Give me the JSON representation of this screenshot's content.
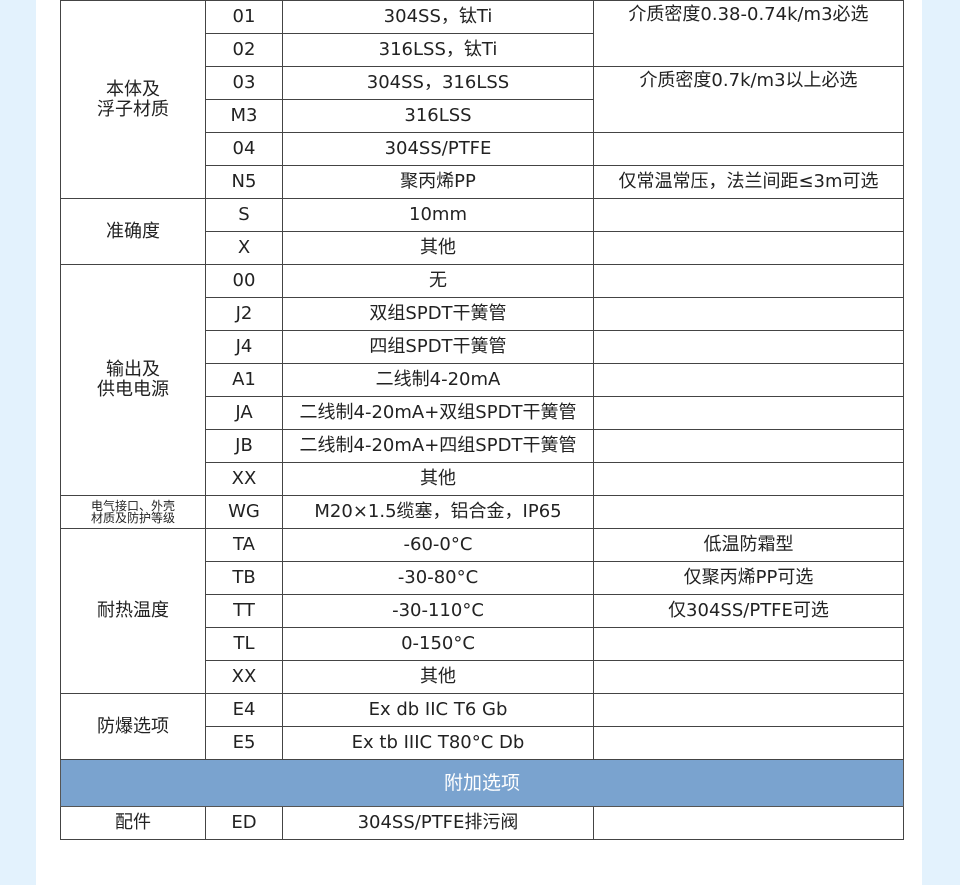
{
  "colors": {
    "band": "#7aa3cf",
    "border": "#444444",
    "background": "#e3f2fd"
  },
  "groups": [
    {
      "category": "本体及\n浮子材质",
      "rows": [
        {
          "code": "01",
          "desc": "304SS，钛Ti",
          "note": "介质密度0.38-0.74k/m3必选",
          "note_span": 2,
          "note_top": true
        },
        {
          "code": "02",
          "desc": "316LSS，钛Ti"
        },
        {
          "code": "03",
          "desc": "304SS，316LSS",
          "note": "介质密度0.7k/m3以上必选",
          "note_span": 2,
          "note_top": true
        },
        {
          "code": "M3",
          "desc": "316LSS"
        },
        {
          "code": "04",
          "desc": "304SS/PTFE",
          "note": "",
          "note_span": 1
        },
        {
          "code": "N5",
          "desc": "聚丙烯PP",
          "note": "仅常温常压，法兰间距≤3m可选",
          "note_span": 1
        }
      ]
    },
    {
      "category": "准确度",
      "rows": [
        {
          "code": "S",
          "desc": "10mm",
          "note": "",
          "note_span": 1
        },
        {
          "code": "X",
          "desc": "其他",
          "note": "",
          "note_span": 1
        }
      ]
    },
    {
      "category": "输出及\n供电电源",
      "rows": [
        {
          "code": "00",
          "desc": "无",
          "note": "",
          "note_span": 1
        },
        {
          "code": "J2",
          "desc": "双组SPDT干簧管",
          "note": "",
          "note_span": 1
        },
        {
          "code": "J4",
          "desc": "四组SPDT干簧管",
          "note": "",
          "note_span": 1
        },
        {
          "code": "A1",
          "desc": "二线制4-20mA",
          "note": "",
          "note_span": 1
        },
        {
          "code": "JA",
          "desc": "二线制4-20mA+双组SPDT干簧管",
          "note": "",
          "note_span": 1
        },
        {
          "code": "JB",
          "desc": "二线制4-20mA+四组SPDT干簧管",
          "note": "",
          "note_span": 1
        },
        {
          "code": "XX",
          "desc": "其他",
          "note": "",
          "note_span": 1
        }
      ]
    },
    {
      "category": "电气接口、外壳\n材质及防护等级",
      "small": true,
      "rows": [
        {
          "code": "WG",
          "desc": "M20×1.5缆塞，铝合金，IP65",
          "note": "",
          "note_span": 1
        }
      ]
    },
    {
      "category": "耐热温度",
      "rows": [
        {
          "code": "TA",
          "desc": "-60-0°C",
          "note": "低温防霜型",
          "note_span": 1
        },
        {
          "code": "TB",
          "desc": "-30-80°C",
          "note": "仅聚丙烯PP可选",
          "note_span": 1
        },
        {
          "code": "TT",
          "desc": "-30-110°C",
          "note": "仅304SS/PTFE可选",
          "note_span": 1
        },
        {
          "code": "TL",
          "desc": "0-150°C",
          "note": "",
          "note_span": 1
        },
        {
          "code": "XX",
          "desc": "其他",
          "note": "",
          "note_span": 1
        }
      ]
    },
    {
      "category": "防爆选项",
      "rows": [
        {
          "code": "E4",
          "desc": "Ex db IIC T6 Gb",
          "note": "",
          "note_span": 1
        },
        {
          "code": "E5",
          "desc": "Ex tb IIIC T80°C Db",
          "note": "",
          "note_span": 1
        }
      ]
    }
  ],
  "band_title": "附加选项",
  "extra_groups": [
    {
      "category": "配件",
      "rows": [
        {
          "code": "ED",
          "desc": "304SS/PTFE排污阀",
          "note": "",
          "note_span": 1
        }
      ]
    }
  ]
}
